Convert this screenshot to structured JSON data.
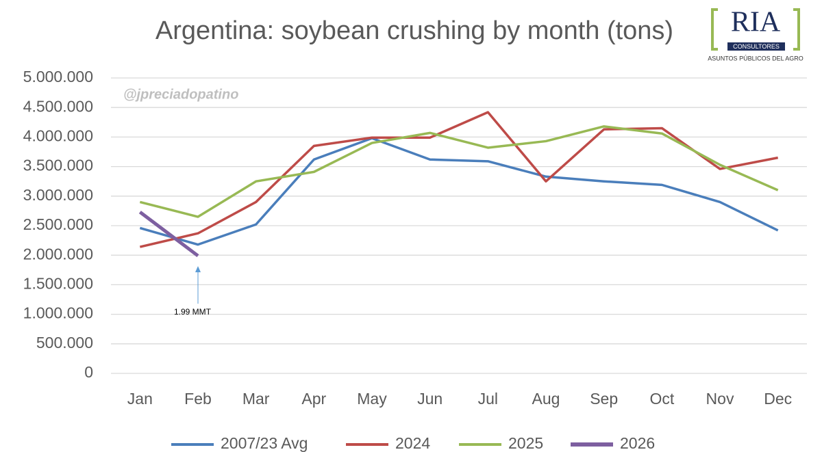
{
  "chart_data": {
    "type": "line",
    "title": "Argentina: soybean crushing by month (tons)",
    "watermark": "@jpreciadopatino",
    "logo": {
      "name": "RIA",
      "tag": "CONSULTORES",
      "subtitle": "ASUNTOS PÚBLICOS DEL AGRO"
    },
    "annotation": "1.99 MMT",
    "categories": [
      "Jan",
      "Feb",
      "Mar",
      "Apr",
      "May",
      "Jun",
      "Jul",
      "Aug",
      "Sep",
      "Oct",
      "Nov",
      "Dec"
    ],
    "series": [
      {
        "name": "2007/23 Avg",
        "color": "#4a7ebb",
        "values": [
          2460000,
          2180000,
          2520000,
          3620000,
          3980000,
          3620000,
          3590000,
          3330000,
          3250000,
          3190000,
          2900000,
          2420000
        ]
      },
      {
        "name": "2024",
        "color": "#be4b48",
        "values": [
          2140000,
          2370000,
          2900000,
          3850000,
          3990000,
          3990000,
          4420000,
          3250000,
          4130000,
          4150000,
          3460000,
          3650000
        ]
      },
      {
        "name": "2025",
        "color": "#98b954",
        "values": [
          2900000,
          2650000,
          3250000,
          3410000,
          3900000,
          4070000,
          3820000,
          3930000,
          4180000,
          4060000,
          3530000,
          3100000
        ]
      },
      {
        "name": "2026",
        "color": "#7d5fa0",
        "values": [
          2730000,
          1990000,
          null,
          null,
          null,
          null,
          null,
          null,
          null,
          null,
          null,
          null
        ]
      }
    ],
    "ylim": [
      0,
      5000000
    ],
    "yticks": [
      0,
      {
        "value": 500000,
        "label": "500.000"
      },
      {
        "value": 1000000,
        "label": "1.000.000"
      },
      {
        "value": 1500000,
        "label": "1.500.000"
      },
      {
        "value": 2000000,
        "label": "2.000.000"
      },
      {
        "value": 2500000,
        "label": "2.500.000"
      },
      {
        "value": 3000000,
        "label": "3.000.000"
      },
      {
        "value": 3500000,
        "label": "3.500.000"
      },
      {
        "value": 4000000,
        "label": "4.000.000"
      },
      {
        "value": 4500000,
        "label": "4.500.000"
      },
      {
        "value": 5000000,
        "label": "5.000.000"
      }
    ],
    "grid": true,
    "legend": "bottom"
  }
}
